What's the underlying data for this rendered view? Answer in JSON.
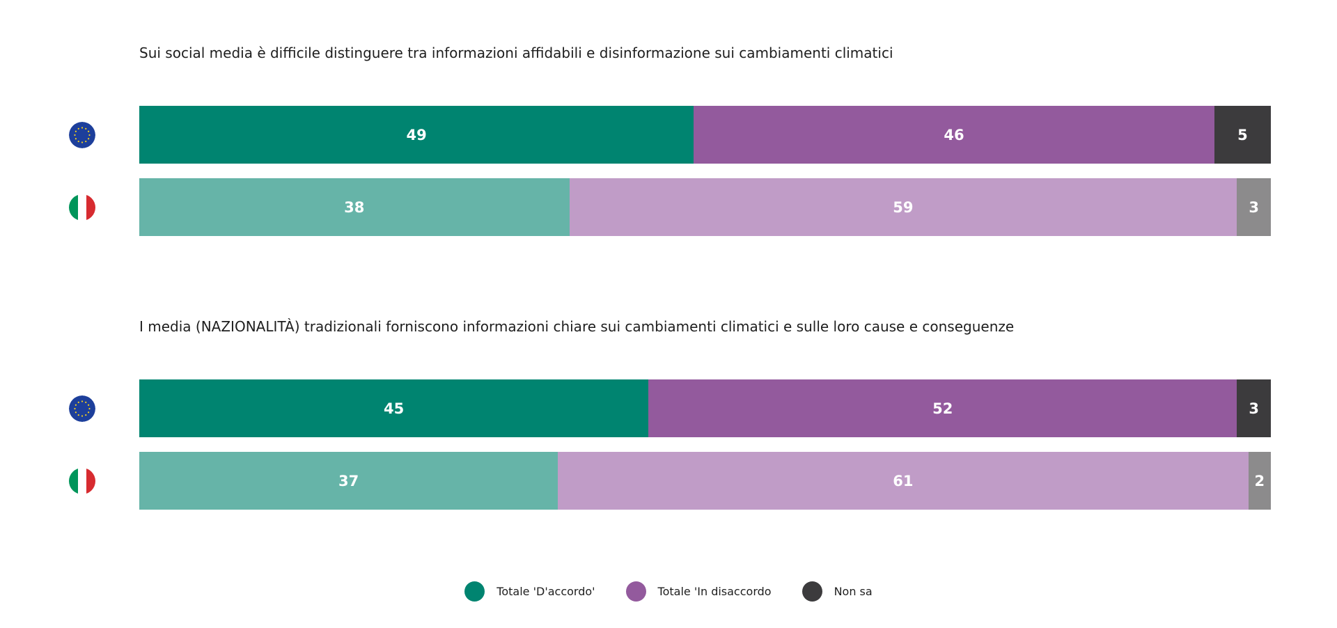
{
  "chart_data": {
    "type": "bar",
    "orientation": "horizontal",
    "stacked": true,
    "unit": "%",
    "legend_position": "bottom-center",
    "grid": false,
    "xlim": [
      0,
      100
    ],
    "legend": [
      {
        "name": "Totale 'D'accordo'",
        "color": "#008470"
      },
      {
        "name": "Totale 'In disaccordo",
        "color": "#935a9d"
      },
      {
        "name": "Non sa",
        "color": "#3c3b3d"
      }
    ],
    "questions": [
      {
        "title": "Sui social media è difficile distinguere tra informazioni affidabili e disinformazione sui cambiamenti climatici",
        "rows": [
          {
            "flag": "eu-flag-icon",
            "values": [
              49,
              46,
              5
            ],
            "colors": [
              "#008470",
              "#935a9d",
              "#3c3b3d"
            ]
          },
          {
            "flag": "italy-flag-icon",
            "values": [
              38,
              59,
              3
            ],
            "colors": [
              "#66b4a8",
              "#c09cc7",
              "#8c8b8c"
            ]
          }
        ]
      },
      {
        "title": "I media (NAZIONALITÀ) tradizionali forniscono informazioni chiare sui cambiamenti climatici e sulle loro cause e conseguenze",
        "rows": [
          {
            "flag": "eu-flag-icon",
            "values": [
              45,
              52,
              3
            ],
            "colors": [
              "#008470",
              "#935a9d",
              "#3c3b3d"
            ]
          },
          {
            "flag": "italy-flag-icon",
            "values": [
              37,
              61,
              2
            ],
            "colors": [
              "#66b4a8",
              "#c09cc7",
              "#8c8b8c"
            ]
          }
        ]
      }
    ]
  }
}
